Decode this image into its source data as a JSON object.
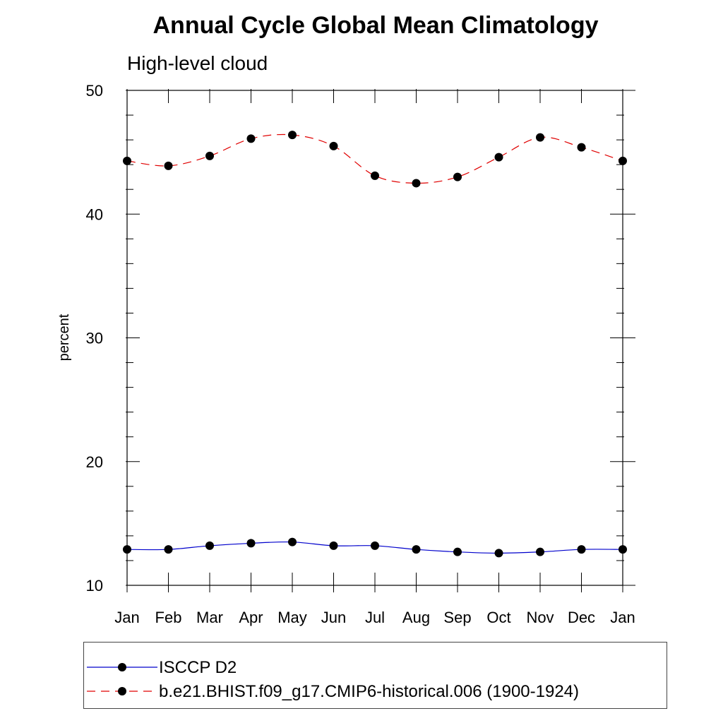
{
  "chart_data": {
    "type": "line",
    "title": "Annual Cycle Global Mean Climatology",
    "subtitle": "High-level cloud",
    "xlabel": "",
    "ylabel": "percent",
    "categories": [
      "Jan",
      "Feb",
      "Mar",
      "Apr",
      "May",
      "Jun",
      "Jul",
      "Aug",
      "Sep",
      "Oct",
      "Nov",
      "Dec",
      "Jan"
    ],
    "ylim": [
      10,
      50
    ],
    "yticks": [
      10,
      20,
      30,
      40,
      50
    ],
    "yminor_step": 2,
    "grid": false,
    "legend_position": "bottom",
    "series": [
      {
        "name": "ISCCP D2",
        "color": "#0000cc",
        "line_style": "solid",
        "marker": "filled-circle",
        "values": [
          12.9,
          12.9,
          13.2,
          13.4,
          13.5,
          13.2,
          13.2,
          12.9,
          12.7,
          12.6,
          12.7,
          12.9,
          12.9
        ]
      },
      {
        "name": "b.e21.BHIST.f09_g17.CMIP6-historical.006 (1900-1924)",
        "color": "#e00000",
        "line_style": "dashed",
        "marker": "filled-circle",
        "values": [
          44.3,
          43.9,
          44.7,
          46.1,
          46.4,
          45.5,
          43.1,
          42.5,
          43.0,
          44.6,
          46.2,
          45.4,
          44.3
        ]
      }
    ]
  }
}
